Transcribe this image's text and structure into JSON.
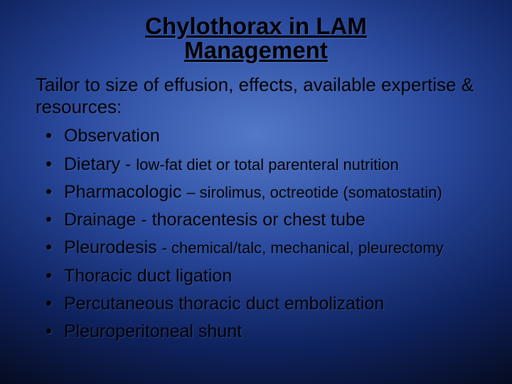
{
  "slide": {
    "title_line1": "Chylothorax in LAM",
    "title_line2": "Management",
    "subtitle": "Tailor  to size of effusion, effects, available expertise & resources:",
    "bullets": [
      {
        "main": "Observation",
        "detail": ""
      },
      {
        "main": "Dietary - ",
        "detail": "low-fat diet or total parenteral nutrition"
      },
      {
        "main": "Pharmacologic ",
        "detail": "– sirolimus, octreotide (somatostatin)"
      },
      {
        "main": "Drainage - thoracentesis or chest tube",
        "detail": ""
      },
      {
        "main": "Pleurodesis ",
        "detail": "- chemical/talc, mechanical, pleurectomy"
      },
      {
        "main": "Thoracic duct ligation",
        "detail": ""
      },
      {
        "main": "Percutaneous thoracic duct embolization",
        "detail": ""
      },
      {
        "main": "Pleuroperitoneal shunt",
        "detail": ""
      }
    ]
  },
  "style": {
    "background_gradient": {
      "inner": "#5478c8",
      "mid": "#0f2360",
      "outer": "#000000"
    },
    "title_fontsize": 33,
    "subtitle_fontsize": 26,
    "bullet_main_fontsize": 25,
    "bullet_detail_fontsize": 22,
    "text_color": "#000000",
    "font_family": "Arial",
    "bullet_char": "•",
    "slide_width": 720,
    "slide_height": 540
  }
}
